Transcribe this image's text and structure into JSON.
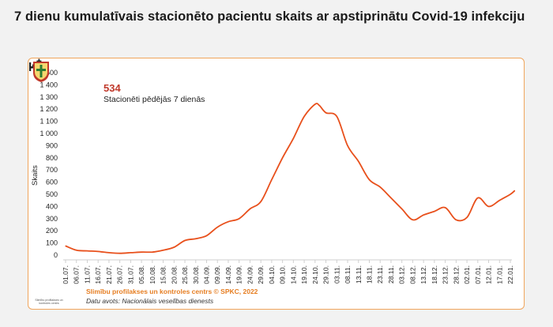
{
  "page": {
    "title": "7 dienu kumulatīvais stacionēto pacientu skaits ar apstiprinātu Covid-19 infekciju"
  },
  "kpi": {
    "icon": "hospital-bed-icon",
    "value": "534",
    "label": "Stacionēti pēdējās 7 dienās"
  },
  "footer": {
    "credit": "Slimību profilakses un kontroles centrs © SPKC, 2022",
    "source": "Datu avots: Nacionālais veselības dienests",
    "logo_caption": "Slimību profilakses un kontroles centrs"
  },
  "colors": {
    "line": "#e8501c",
    "card_border": "#f0a55c",
    "credit": "#e67e22",
    "kpi_value": "#c0392b"
  },
  "chart_data": {
    "type": "line",
    "title": "",
    "xlabel": "",
    "ylabel": "Skaits",
    "ylim": [
      0,
      1500
    ],
    "yticks": [
      0,
      100,
      200,
      300,
      400,
      500,
      600,
      700,
      800,
      900,
      1000,
      1100,
      1200,
      1300,
      1400,
      1500
    ],
    "ytick_labels": [
      "0",
      "100",
      "200",
      "300",
      "400",
      "500",
      "600",
      "700",
      "800",
      "900",
      "1 000",
      "1 100",
      "1 200",
      "1 300",
      "1 400",
      "1 500"
    ],
    "grid": false,
    "x_tick_labels": [
      "01.07.",
      "06.07.",
      "11.07.",
      "16.07.",
      "21.07.",
      "26.07.",
      "31.07.",
      "05.08.",
      "10.08.",
      "15.08.",
      "20.08.",
      "25.08.",
      "30.08.",
      "04.09.",
      "09.09.",
      "14.09.",
      "19.09.",
      "24.09.",
      "29.09.",
      "04.10.",
      "09.10.",
      "14.10.",
      "19.10.",
      "24.10.",
      "29.10.",
      "03.11.",
      "08.11.",
      "13.11.",
      "18.11.",
      "23.11.",
      "28.11.",
      "03.12.",
      "08.12.",
      "13.12.",
      "18.12.",
      "23.12.",
      "28.12.",
      "02.01.",
      "07.01.",
      "12.01.",
      "17.01.",
      "22.01."
    ],
    "series": [
      {
        "x": [
          "01.07.",
          "06.07.",
          "11.07.",
          "16.07.",
          "21.07.",
          "26.07.",
          "31.07.",
          "05.08.",
          "10.08.",
          "15.08.",
          "20.08.",
          "25.08.",
          "30.08.",
          "04.09.",
          "09.09.",
          "14.09.",
          "19.09.",
          "24.09.",
          "29.09.",
          "04.10.",
          "09.10.",
          "14.10.",
          "19.10.",
          "24.10.",
          "26.10.",
          "29.10.",
          "03.11.",
          "08.11.",
          "13.11.",
          "18.11.",
          "23.11.",
          "28.11.",
          "03.12.",
          "08.12.",
          "13.12.",
          "18.12.",
          "23.12.",
          "28.12.",
          "02.01.",
          "07.01.",
          "12.01.",
          "17.01.",
          "22.01.",
          "24.01."
        ],
        "values": [
          75,
          40,
          35,
          30,
          20,
          15,
          20,
          25,
          25,
          40,
          65,
          120,
          135,
          160,
          230,
          275,
          300,
          380,
          440,
          620,
          800,
          960,
          1140,
          1240,
          1230,
          1170,
          1140,
          900,
          770,
          620,
          560,
          470,
          380,
          290,
          330,
          360,
          390,
          290,
          310,
          470,
          400,
          450,
          500,
          530
        ]
      }
    ]
  }
}
